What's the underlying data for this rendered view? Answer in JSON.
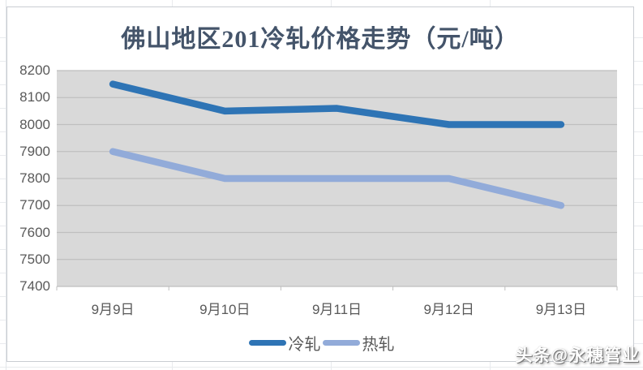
{
  "watermark": "头条@永穗管业",
  "colors": {
    "title_text": "#44546A",
    "axis_text": "#595959",
    "plot_bg": "#D9D9D9",
    "gridline": "#BFBFBF",
    "chart_border": "#C9CDD2",
    "sheet_grid": "#E9EBEE",
    "cold_series": "#2E74B5",
    "hot_series": "#92ABD9"
  },
  "chart_data": {
    "type": "line",
    "title": "佛山地区201冷轧价格走势（元/吨）",
    "categories": [
      "9月9日",
      "9月10日",
      "9月11日",
      "9月12日",
      "9月13日"
    ],
    "series": [
      {
        "name": "冷轧",
        "color": "#2E74B5",
        "values": [
          8150,
          8050,
          8060,
          8000,
          8000
        ]
      },
      {
        "name": "热轧",
        "color": "#92ABD9",
        "values": [
          7900,
          7800,
          7800,
          7800,
          7700
        ]
      }
    ],
    "ylim": [
      7400,
      8200
    ],
    "yticks": [
      8200,
      8100,
      8000,
      7900,
      7800,
      7700,
      7600,
      7500,
      7400
    ],
    "xlabel": "",
    "ylabel": "",
    "grid": true,
    "legend_position": "bottom"
  }
}
